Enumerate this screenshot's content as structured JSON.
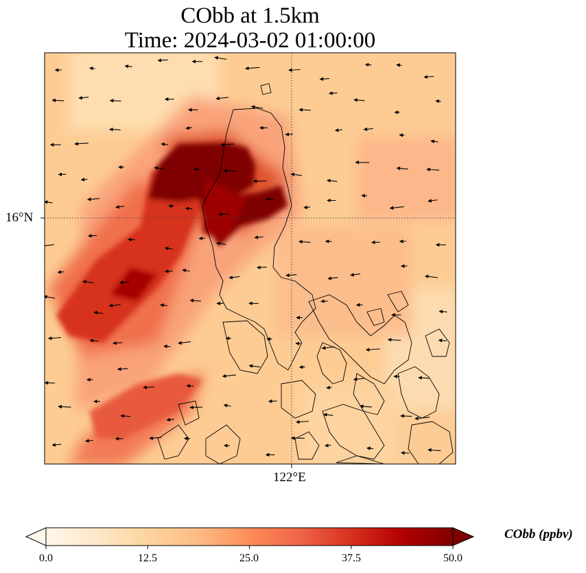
{
  "title": {
    "line1": "CObb at 1.5km",
    "line2": "Time: 2024-03-02 01:00:00"
  },
  "map": {
    "lat_label": "16°N",
    "lon_label": "122°E",
    "gridline_style": "dotted",
    "features": [
      "coastlines",
      "wind-vectors",
      "gridlines"
    ]
  },
  "colorbar": {
    "label": "CObb (ppbv)",
    "ticks": [
      "0.0",
      "12.5",
      "25.0",
      "37.5",
      "50.0"
    ],
    "min": 0,
    "max": 50,
    "extend": "both",
    "colormap": "OrRd",
    "colors": [
      "#fff7ec",
      "#fee8c8",
      "#fdd49e",
      "#fdbb84",
      "#fc8d59",
      "#ef6548",
      "#d7301f",
      "#b30000",
      "#7f0000"
    ]
  }
}
